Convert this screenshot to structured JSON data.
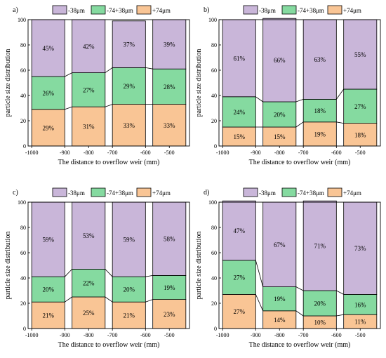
{
  "colors": {
    "minus38": "#c9b6d9",
    "mid": "#85daa0",
    "plus74": "#f9c595",
    "border": "#000000"
  },
  "legend": [
    "-38μm",
    "-74+38μm",
    "+74μm"
  ],
  "chart_data": [
    {
      "type": "bar",
      "panel_label": "a)",
      "categories": [
        "-1000~-900",
        "-800~-700",
        "-700~-600",
        "-600~-500"
      ],
      "x_ticks": [
        "-1000",
        "-900",
        "-800",
        "-700",
        "-600",
        "-500"
      ],
      "series": [
        {
          "name": "+74μm",
          "values": [
            29,
            31,
            33,
            33
          ],
          "labels": [
            "29%",
            "31%",
            "33%",
            "33%"
          ]
        },
        {
          "name": "-74+38μm",
          "values": [
            26,
            27,
            29,
            28
          ],
          "labels": [
            "26%",
            "27%",
            "29%",
            "28%"
          ]
        },
        {
          "name": "-38μm",
          "values": [
            45,
            42,
            37,
            39
          ],
          "labels": [
            "45%",
            "42%",
            "37%",
            "39%"
          ]
        }
      ],
      "xlabel": "The distance to overflow weir (mm)",
      "ylabel": "particle size distribution",
      "ylim": [
        0,
        100
      ],
      "y_ticks": [
        "0",
        "20",
        "40",
        "60",
        "80",
        "100"
      ],
      "legend_position": "top"
    },
    {
      "type": "bar",
      "panel_label": "b)",
      "categories": [
        "-1000~-900",
        "-800~-700",
        "-700~-600",
        "-600~-500"
      ],
      "x_ticks": [
        "-1000",
        "-900",
        "-800",
        "-700",
        "-600",
        "-500"
      ],
      "series": [
        {
          "name": "+74μm",
          "values": [
            15,
            15,
            19,
            18
          ],
          "labels": [
            "15%",
            "15%",
            "19%",
            "18%"
          ]
        },
        {
          "name": "-74+38μm",
          "values": [
            24,
            20,
            18,
            27
          ],
          "labels": [
            "24%",
            "20%",
            "18%",
            "27%"
          ]
        },
        {
          "name": "-38μm",
          "values": [
            61,
            66,
            63,
            55
          ],
          "labels": [
            "61%",
            "66%",
            "63%",
            "55%"
          ]
        }
      ],
      "xlabel": "The distance to overflow weir (mm)",
      "ylabel": "particle size distribution",
      "ylim": [
        0,
        100
      ],
      "y_ticks": [
        "0",
        "20",
        "40",
        "60",
        "80",
        "100"
      ],
      "legend_position": "top"
    },
    {
      "type": "bar",
      "panel_label": "c)",
      "categories": [
        "-1000~-900",
        "-800~-700",
        "-700~-600",
        "-600~-500"
      ],
      "x_ticks": [
        "-1000",
        "-900",
        "-800",
        "-700",
        "-600",
        "-500"
      ],
      "series": [
        {
          "name": "+74μm",
          "values": [
            21,
            25,
            21,
            23
          ],
          "labels": [
            "21%",
            "25%",
            "21%",
            "23%"
          ]
        },
        {
          "name": "-74+38μm",
          "values": [
            20,
            22,
            20,
            19
          ],
          "labels": [
            "20%",
            "22%",
            "20%",
            "19%"
          ]
        },
        {
          "name": "-38μm",
          "values": [
            59,
            53,
            59,
            58
          ],
          "labels": [
            "59%",
            "53%",
            "59%",
            "58%"
          ]
        }
      ],
      "xlabel": "The distance to overflow weir (mm)",
      "ylabel": "particle size distribution",
      "ylim": [
        0,
        100
      ],
      "y_ticks": [
        "0",
        "20",
        "40",
        "60",
        "80",
        "100"
      ],
      "legend_position": "top"
    },
    {
      "type": "bar",
      "panel_label": "d)",
      "categories": [
        "-1000~-900",
        "-800~-700",
        "-700~-600",
        "-600~-500"
      ],
      "x_ticks": [
        "-1000",
        "-900",
        "-800",
        "-700",
        "-600",
        "-500"
      ],
      "series": [
        {
          "name": "+74μm",
          "values": [
            27,
            14,
            10,
            11
          ],
          "labels": [
            "27%",
            "14%",
            "10%",
            "11%"
          ]
        },
        {
          "name": "-74+38μm",
          "values": [
            27,
            19,
            20,
            16
          ],
          "labels": [
            "27%",
            "19%",
            "20%",
            "16%"
          ]
        },
        {
          "name": "-38μm",
          "values": [
            47,
            67,
            71,
            73
          ],
          "labels": [
            "47%",
            "67%",
            "71%",
            "73%"
          ]
        }
      ],
      "xlabel": "The distance to overflow weir (mm)",
      "ylabel": "particle size distribution",
      "ylim": [
        0,
        100
      ],
      "y_ticks": [
        "0",
        "20",
        "40",
        "60",
        "80",
        "100"
      ],
      "legend_position": "top"
    }
  ]
}
